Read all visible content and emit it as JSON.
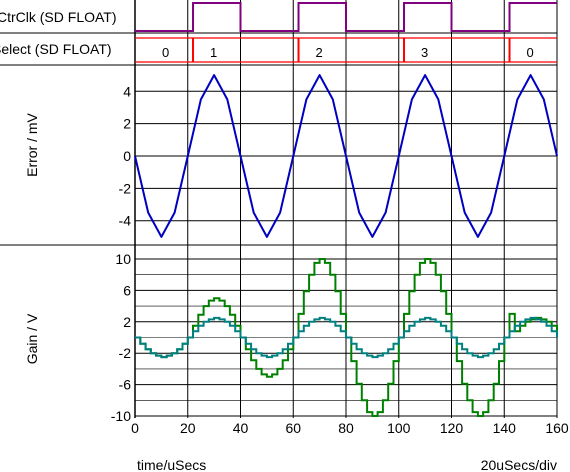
{
  "footer": {
    "x_axis_label": "time/uSecs",
    "scale_label": "20uSecs/div"
  },
  "chart_data": [
    {
      "type": "digital",
      "name": "CtrClk (SD FLOAT)",
      "color": "#800080",
      "x_range": [
        0,
        160
      ],
      "edges": [
        {
          "t": 0,
          "level": 0
        },
        {
          "t": 22,
          "level": 1
        },
        {
          "t": 40,
          "level": 0
        },
        {
          "t": 62,
          "level": 1
        },
        {
          "t": 80,
          "level": 0
        },
        {
          "t": 102,
          "level": 1
        },
        {
          "t": 120,
          "level": 0
        },
        {
          "t": 142,
          "level": 1
        }
      ]
    },
    {
      "type": "bus",
      "name": "Select (SD FLOAT)",
      "color": "#ff0000",
      "x_range": [
        0,
        160
      ],
      "segments": [
        {
          "start": 0,
          "end": 22,
          "label": "0"
        },
        {
          "start": 22,
          "end": 62,
          "label": "1"
        },
        {
          "start": 62,
          "end": 102,
          "label": "2"
        },
        {
          "start": 102,
          "end": 142,
          "label": "3"
        },
        {
          "start": 142,
          "end": 160,
          "label": "0"
        }
      ]
    },
    {
      "type": "line",
      "title": "",
      "xlabel": "time/uSecs",
      "ylabel": "Error / mV",
      "xlim": [
        0,
        160
      ],
      "ylim": [
        -5.5,
        5.5
      ],
      "yticks": [
        4,
        2,
        0,
        -2,
        -4
      ],
      "grid": true,
      "series": [
        {
          "color": "#0000c0",
          "x": [
            0,
            5,
            10,
            15,
            20,
            25,
            30,
            35,
            40,
            45,
            50,
            55,
            60,
            65,
            70,
            75,
            80,
            85,
            90,
            95,
            100,
            105,
            110,
            115,
            120,
            125,
            130,
            135,
            140,
            145,
            150,
            155,
            160
          ],
          "y": [
            0,
            -3.5,
            -5,
            -3.5,
            0,
            3.5,
            5,
            3.5,
            0,
            -3.5,
            -5,
            -3.5,
            0,
            3.5,
            5,
            3.5,
            0,
            -3.5,
            -5,
            -3.5,
            0,
            3.5,
            5,
            3.5,
            0,
            -3.5,
            -5,
            -3.5,
            0,
            3.5,
            5,
            3.5,
            0
          ]
        }
      ]
    },
    {
      "type": "line",
      "title": "",
      "xlabel": "time/uSecs",
      "ylabel": "Gain / V",
      "xlim": [
        0,
        160
      ],
      "ylim": [
        -10,
        10
      ],
      "yticks": [
        10,
        6,
        2,
        -2,
        -6,
        -10
      ],
      "xticks": [
        0,
        20,
        40,
        60,
        80,
        100,
        120,
        140,
        160
      ],
      "grid": true,
      "series": [
        {
          "color": "#008000",
          "x": [
            0,
            2,
            4,
            6,
            8,
            10,
            12,
            14,
            16,
            18,
            20,
            22,
            24,
            26,
            28,
            30,
            32,
            34,
            36,
            38,
            40,
            42,
            44,
            46,
            48,
            50,
            52,
            54,
            56,
            58,
            60,
            62,
            64,
            66,
            68,
            70,
            72,
            74,
            76,
            78,
            80,
            82,
            84,
            86,
            88,
            90,
            92,
            94,
            96,
            98,
            100,
            102,
            104,
            106,
            108,
            110,
            112,
            114,
            116,
            118,
            120,
            122,
            124,
            126,
            128,
            130,
            132,
            134,
            136,
            138,
            140,
            142,
            144,
            146,
            148,
            150,
            152,
            154,
            156,
            158,
            160
          ],
          "y": [
            0,
            -0.8,
            -1.5,
            -2,
            -2.3,
            -2.5,
            -2.3,
            -2,
            -1.5,
            -0.8,
            0,
            1.5,
            2.9,
            4,
            4.7,
            5,
            4.7,
            4,
            2.9,
            1.5,
            0,
            -1.5,
            -2.9,
            -4,
            -4.7,
            -5,
            -4.7,
            -4,
            -2.9,
            -1.5,
            0,
            3,
            5.9,
            8,
            9.5,
            10,
            9.5,
            8,
            5.9,
            3,
            0,
            -3,
            -5.9,
            -8,
            -9.5,
            -10,
            -9.5,
            -8,
            -5.9,
            -3,
            0,
            3,
            5.9,
            8,
            9.5,
            10,
            9.5,
            8,
            5.9,
            3,
            0,
            -3,
            -5.9,
            -8,
            -9.5,
            -10,
            -9.5,
            -8,
            -5.9,
            -3,
            0,
            3,
            0.8,
            1.5,
            2,
            2.3,
            2.5,
            2.3,
            2,
            1.5,
            0.8
          ]
        },
        {
          "color": "#008080",
          "x": [
            0,
            2,
            4,
            6,
            8,
            10,
            12,
            14,
            16,
            18,
            20,
            22,
            24,
            26,
            28,
            30,
            32,
            34,
            36,
            38,
            40,
            42,
            44,
            46,
            48,
            50,
            52,
            54,
            56,
            58,
            60,
            62,
            64,
            66,
            68,
            70,
            72,
            74,
            76,
            78,
            80,
            82,
            84,
            86,
            88,
            90,
            92,
            94,
            96,
            98,
            100,
            102,
            104,
            106,
            108,
            110,
            112,
            114,
            116,
            118,
            120,
            122,
            124,
            126,
            128,
            130,
            132,
            134,
            136,
            138,
            140,
            142,
            144,
            146,
            148,
            150,
            152,
            154,
            156,
            158,
            160
          ],
          "y": [
            0,
            -0.8,
            -1.5,
            -2,
            -2.3,
            -2.5,
            -2.3,
            -2,
            -1.5,
            -0.8,
            0,
            0.8,
            1.5,
            2,
            2.3,
            2.5,
            2.3,
            2,
            1.5,
            0.8,
            0,
            -0.8,
            -1.5,
            -2,
            -2.3,
            -2.5,
            -2.3,
            -2,
            -1.5,
            -0.8,
            0,
            0.8,
            1.5,
            2,
            2.3,
            2.5,
            2.3,
            2,
            1.5,
            0.8,
            0,
            -0.8,
            -1.5,
            -2,
            -2.3,
            -2.5,
            -2.3,
            -2,
            -1.5,
            -0.8,
            0,
            0.8,
            1.5,
            2,
            2.3,
            2.5,
            2.3,
            2,
            1.5,
            0.8,
            0,
            -0.8,
            -1.5,
            -2,
            -2.3,
            -2.5,
            -2.3,
            -2,
            -1.5,
            -0.8,
            0,
            0.8,
            1.5,
            2,
            2.3,
            2.5,
            2.3,
            2,
            1.5,
            0.8,
            0
          ]
        }
      ]
    }
  ]
}
